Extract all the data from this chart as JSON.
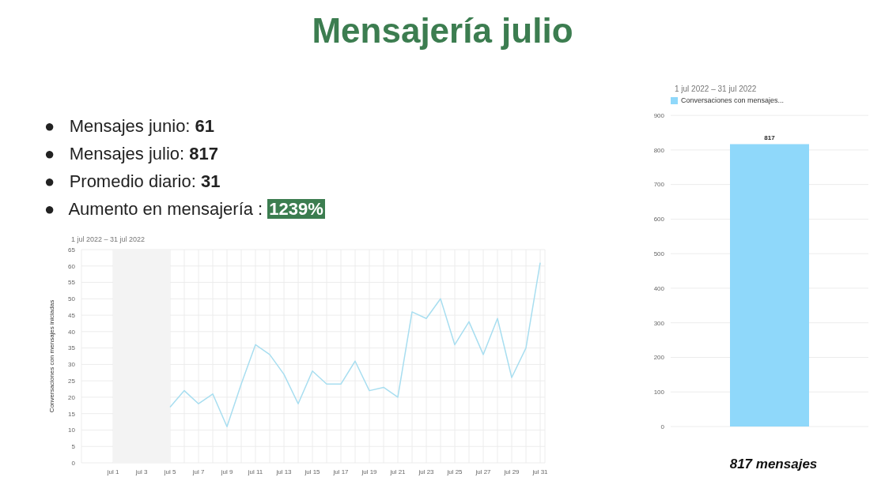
{
  "chart_data": [
    {
      "type": "other",
      "title": "Mensajería julio",
      "annotations": [
        "●   Mensajes junio: 61",
        "●   Mensajes julio: 817",
        "●   Promedio diario: 31",
        "●   Aumento en mensajería : 1239%"
      ]
    },
    {
      "type": "line",
      "subtitle": "1 jul 2022 – 31 jul 2022",
      "ylabel": "Conversaciones con mensajes iniciadas",
      "categories": [
        "jul 1",
        null,
        "jul 3",
        null,
        "jul 5",
        null,
        "jul 7",
        null,
        "jul 9",
        null,
        "jul 11",
        null,
        "jul 13",
        null,
        "jul 15",
        null,
        "jul 17",
        null,
        "jul 19",
        null,
        "jul 21",
        null,
        "jul 23",
        null,
        "jul 25",
        null,
        "jul 27",
        null,
        "jul 29",
        null,
        "jul 31"
      ],
      "values": [
        null,
        null,
        null,
        null,
        17,
        22,
        18,
        21,
        11,
        24,
        36,
        33,
        27,
        18,
        28,
        24,
        24,
        31,
        22,
        23,
        20,
        46,
        44,
        50,
        36,
        43,
        33,
        44,
        26,
        35,
        61
      ],
      "color": "#a8def0",
      "ylim": [
        0,
        65
      ],
      "yticks": [
        0,
        5,
        10,
        15,
        20,
        25,
        30,
        35,
        40,
        45,
        50,
        55,
        60,
        65
      ],
      "grid": true,
      "bands": [
        {
          "axis": "x",
          "from": "jul 1",
          "to": "jul 5",
          "color": "#f3f3f3"
        }
      ]
    },
    {
      "type": "bar",
      "subtitle": "1 jul 2022 – 31 jul 2022",
      "categories": [
        null
      ],
      "series": [
        {
          "name": "Conversaciones con mensajes...",
          "color": "#8fd8fa",
          "values": [
            817
          ]
        }
      ],
      "ylim": [
        0,
        900
      ],
      "yticks": [
        0,
        100,
        200,
        300,
        400,
        500,
        600,
        700,
        800,
        900
      ],
      "grid": "y",
      "legend": "top left",
      "data_labels": true,
      "annotations": [
        "817 mensajes"
      ]
    }
  ]
}
